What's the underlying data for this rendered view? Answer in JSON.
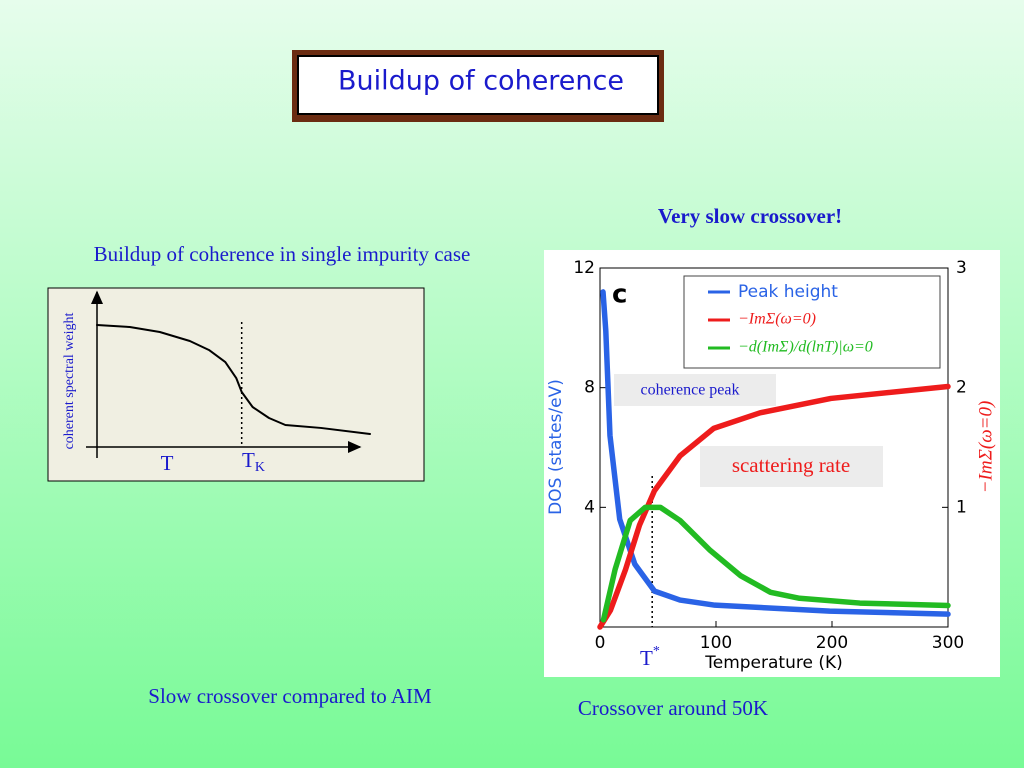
{
  "title": "Buildup of coherence",
  "left_caption": "Buildup of coherence in single impurity case",
  "left_footer": "Slow crossover compared to AIM",
  "right_caption": "Very slow crossover!",
  "right_footer": "Crossover around 50K",
  "chart_data": [
    {
      "type": "line",
      "y_label": "coherent spectral weight",
      "x_label": "T",
      "marker_label": "T",
      "marker_subscript": "K",
      "marker_x": 53,
      "x": [
        0,
        12,
        23,
        34,
        41,
        47,
        51,
        53,
        57,
        63,
        69,
        82,
        100
      ],
      "values": [
        78.7,
        77.4,
        74.2,
        68.4,
        62.6,
        54.8,
        44.5,
        35.5,
        25.8,
        18.7,
        14.2,
        12.3,
        8.4
      ],
      "color": "#000000",
      "xlim": [
        0,
        100
      ],
      "ylim": [
        0,
        100
      ]
    },
    {
      "type": "line",
      "panel_label": "c",
      "x_label": "Temperature (K)",
      "y_label": "DOS (states/eV)",
      "y2_label": "−ImΣ(ω=0)",
      "marker_label": "T",
      "marker_superscript": "*",
      "marker_x": 45,
      "annotations": [
        "coherence peak",
        "scattering rate"
      ],
      "xlim": [
        0,
        300
      ],
      "xticks": [
        0,
        100,
        200,
        300
      ],
      "ylim": [
        0,
        12
      ],
      "yticks": [
        4,
        8,
        12
      ],
      "y2lim": [
        0,
        3
      ],
      "y2ticks": [
        1,
        2,
        3
      ],
      "series": [
        {
          "name": "Peak height",
          "color": "#2a63e6",
          "x": [
            2.6,
            5,
            8.6,
            17,
            30,
            47,
            69,
            99,
            198,
            300
          ],
          "values": [
            11.2,
            9.9,
            6.4,
            3.6,
            2.1,
            1.2,
            0.9,
            0.73,
            0.53,
            0.43
          ]
        },
        {
          "name": "−ImΣ(ω=0)",
          "color": "#ee1c1c",
          "axis": "y2",
          "x": [
            0,
            9,
            22,
            34,
            47,
            69,
            98,
            138,
            199,
            300
          ],
          "values": [
            0,
            0.14,
            0.48,
            0.85,
            1.14,
            1.43,
            1.66,
            1.79,
            1.91,
            2.01
          ]
        },
        {
          "name": "−d(ImΣ)/d(lnT)|ω=0",
          "color": "#22bb22",
          "axis": "y2",
          "x": [
            3,
            13,
            26,
            39,
            52,
            69,
            95,
            121,
            147,
            172,
            224,
            300
          ],
          "values": [
            0.06,
            0.48,
            0.89,
            1.0,
            1.0,
            0.89,
            0.64,
            0.43,
            0.29,
            0.24,
            0.2,
            0.18
          ]
        }
      ]
    }
  ]
}
